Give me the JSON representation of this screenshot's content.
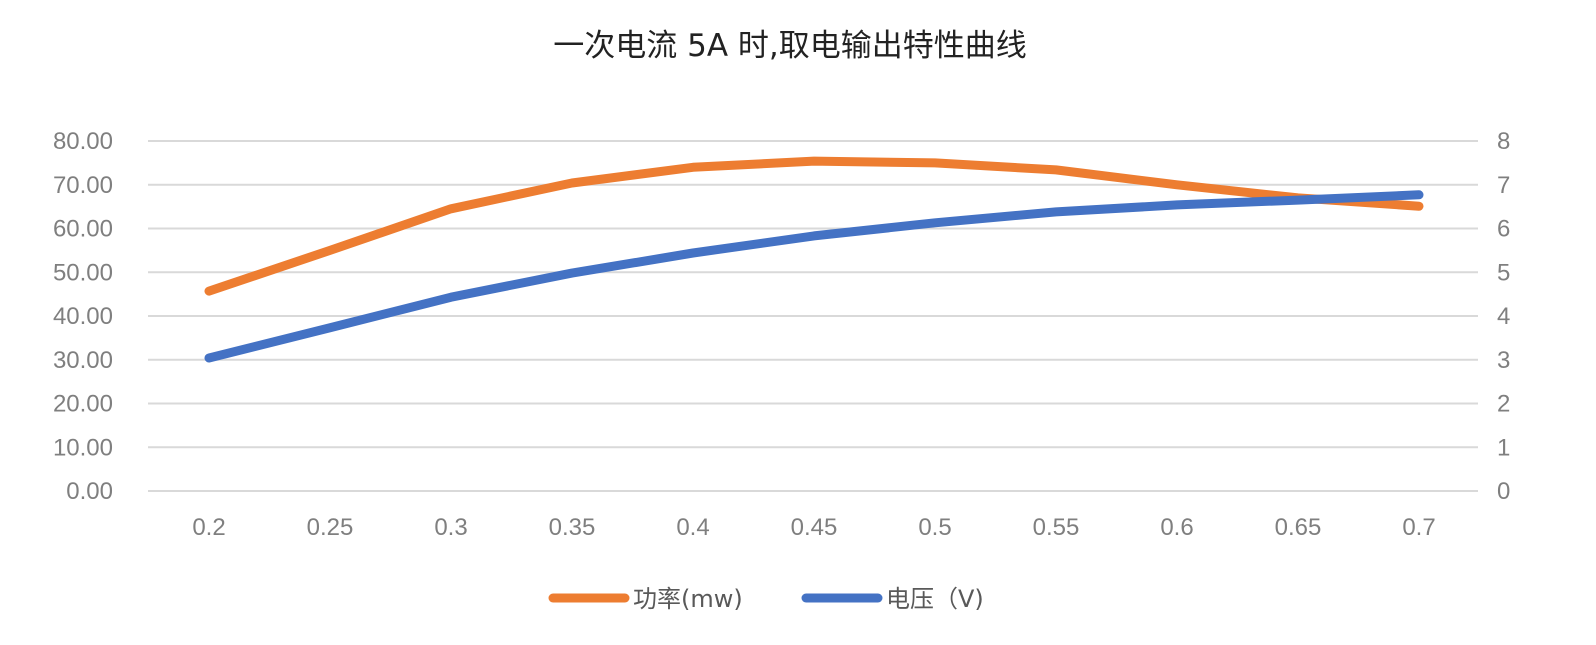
{
  "chart_data": {
    "type": "line",
    "title": "一次电流 5A 时,取电输出特性曲线",
    "x": [
      0.2,
      0.25,
      0.3,
      0.35,
      0.4,
      0.45,
      0.5,
      0.55,
      0.6,
      0.65,
      0.7
    ],
    "x_tick_labels": [
      "0.2",
      "0.25",
      "0.3",
      "0.35",
      "0.4",
      "0.45",
      "0.5",
      "0.55",
      "0.6",
      "0.65",
      "0.7"
    ],
    "y_left": {
      "ylim": [
        0,
        80
      ],
      "tick_labels": [
        "0.00",
        "10.00",
        "20.00",
        "30.00",
        "40.00",
        "50.00",
        "60.00",
        "70.00",
        "80.00"
      ]
    },
    "y_right": {
      "ylim": [
        0,
        8
      ],
      "tick_labels": [
        "0",
        "1",
        "2",
        "3",
        "4",
        "5",
        "6",
        "7",
        "8"
      ]
    },
    "grid": true,
    "legend_position": "bottom",
    "series": [
      {
        "name": "功率(mw)",
        "axis": "left",
        "color": "#ED7D31",
        "values": [
          45.7,
          55.0,
          64.5,
          70.4,
          74.0,
          75.4,
          75.0,
          73.4,
          70.0,
          67.0,
          65.1
        ]
      },
      {
        "name": "电压（V)",
        "axis": "right",
        "color": "#4472C4",
        "values": [
          3.04,
          3.73,
          4.43,
          4.98,
          5.44,
          5.83,
          6.13,
          6.38,
          6.54,
          6.65,
          6.77
        ]
      }
    ]
  }
}
